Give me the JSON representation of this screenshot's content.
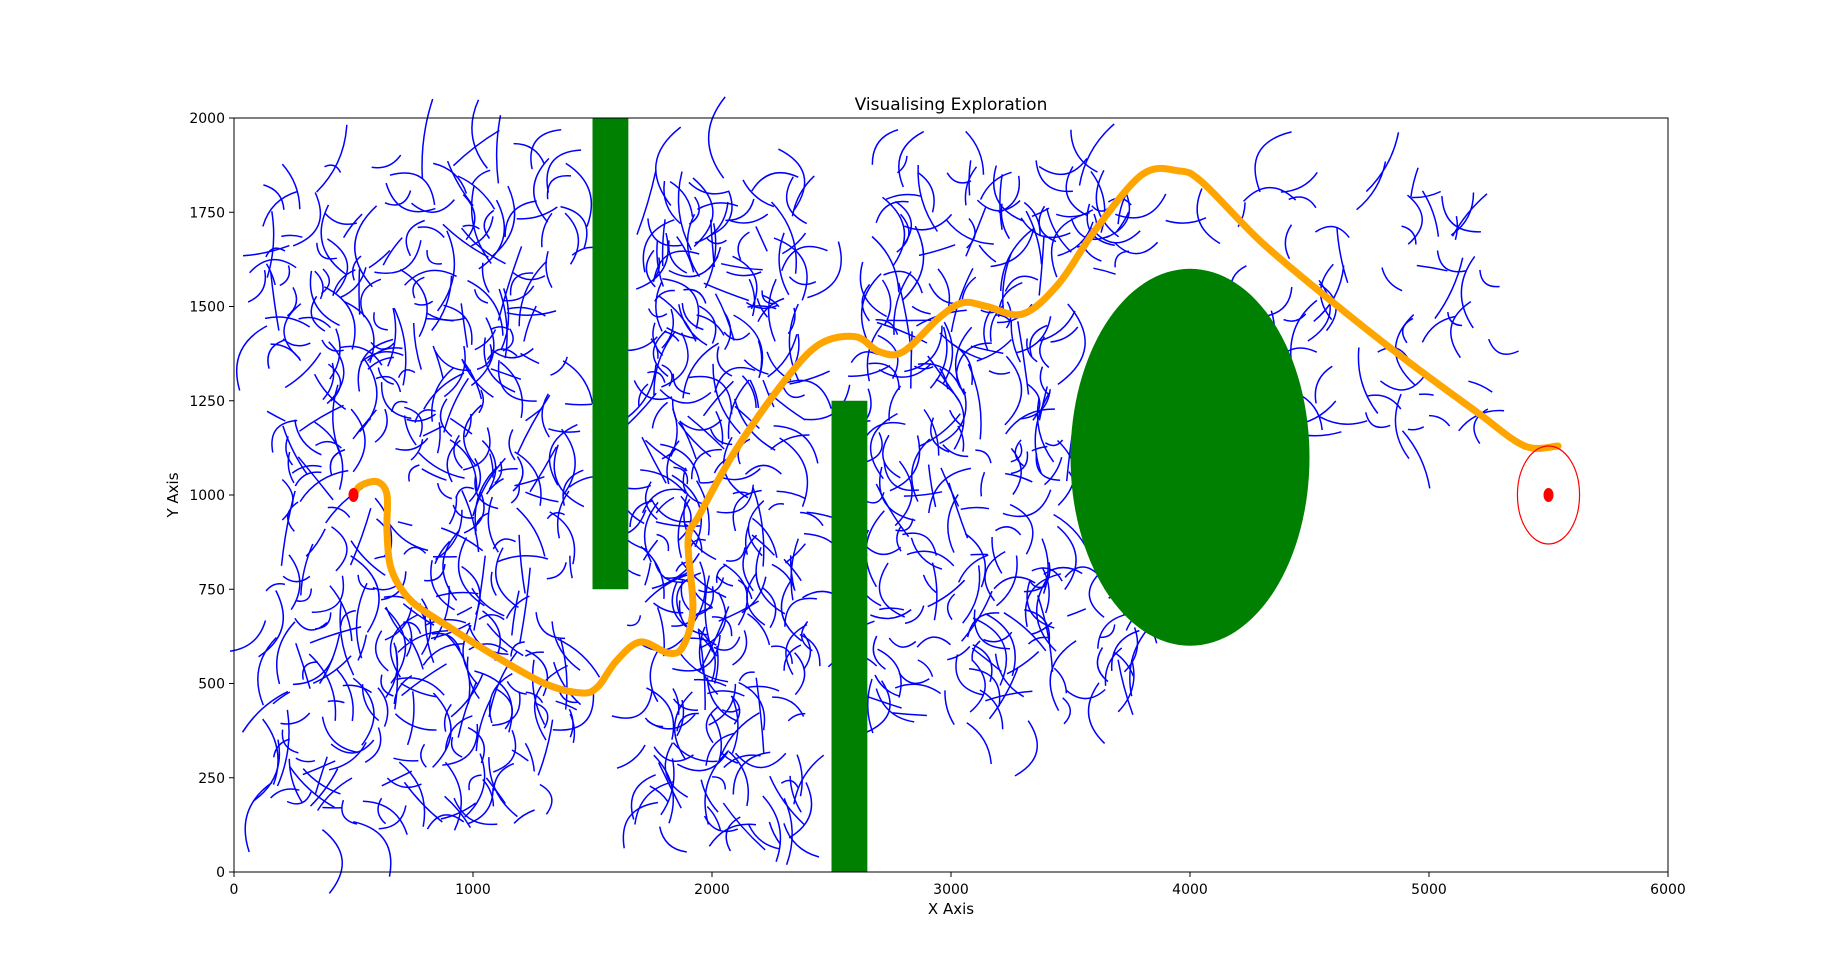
{
  "chart_data": {
    "type": "line",
    "title": "Visualising Exploration",
    "xlabel": "X Axis",
    "ylabel": "Y Axis",
    "xlim": [
      0,
      6000
    ],
    "ylim": [
      0,
      2000
    ],
    "x_ticks": [
      0,
      1000,
      2000,
      3000,
      4000,
      5000,
      6000
    ],
    "y_ticks": [
      0,
      250,
      500,
      750,
      1000,
      1250,
      1500,
      1750,
      2000
    ],
    "grid": false,
    "legend": "none",
    "colors": {
      "exploration": "#0000ff",
      "path": "#ffa500",
      "obstacle": "#008000",
      "marker": "#ff0000"
    },
    "obstacles": [
      {
        "shape": "rect",
        "x": 1500,
        "y": 750,
        "width": 150,
        "height": 1250
      },
      {
        "shape": "rect",
        "x": 2500,
        "y": 0,
        "width": 150,
        "height": 1250
      },
      {
        "shape": "ellipse",
        "cx": 4000,
        "cy": 1100,
        "rx": 500,
        "ry": 500
      }
    ],
    "start": {
      "x": 500,
      "y": 1000
    },
    "goal": {
      "x": 5500,
      "y": 1000,
      "radius_x": 130,
      "radius_y": 130
    },
    "path": {
      "name": "",
      "x": [
        500,
        530,
        600,
        640,
        640,
        660,
        740,
        900,
        1100,
        1300,
        1450,
        1520,
        1600,
        1700,
        1820,
        1880,
        1920,
        1900,
        1950,
        2100,
        2300,
        2450,
        2600,
        2700,
        2800,
        2950,
        3050,
        3150,
        3300,
        3450,
        3600,
        3800,
        3950,
        4050,
        4300,
        4600,
        4900,
        5200,
        5400,
        5540
      ],
      "y": [
        1000,
        1025,
        1035,
        1000,
        900,
        800,
        720,
        650,
        570,
        500,
        475,
        490,
        560,
        610,
        580,
        600,
        700,
        880,
        950,
        1120,
        1300,
        1400,
        1420,
        1380,
        1380,
        1470,
        1510,
        1500,
        1480,
        1560,
        1700,
        1850,
        1860,
        1830,
        1670,
        1510,
        1360,
        1220,
        1130,
        1130
      ]
    },
    "exploration_seed": 7,
    "exploration_regions": [
      {
        "x0": 120,
        "x1": 1420,
        "y0": 110,
        "y1": 1880,
        "count": 420
      },
      {
        "x0": 1700,
        "x1": 2400,
        "y0": 120,
        "y1": 1870,
        "count": 300
      },
      {
        "x0": 2650,
        "x1": 3500,
        "y0": 380,
        "y1": 1880,
        "count": 230
      },
      {
        "x0": 3500,
        "x1": 3700,
        "y0": 1600,
        "y1": 1880,
        "count": 25
      },
      {
        "x0": 3600,
        "x1": 3850,
        "y0": 500,
        "y1": 800,
        "count": 20
      },
      {
        "x0": 4000,
        "x1": 5300,
        "y0": 1150,
        "y1": 1860,
        "count": 70
      }
    ]
  }
}
